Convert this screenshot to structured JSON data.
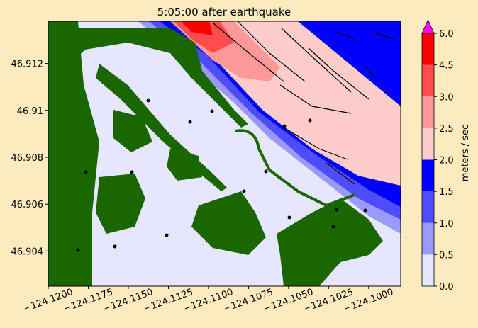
{
  "chart_data": {
    "type": "contourf",
    "title": "5:05:00 after earthquake",
    "xlim": [
      -124.12,
      -124.098
    ],
    "ylim": [
      46.9025,
      46.9138
    ],
    "xticks": [
      {
        "value": -124.12,
        "label": "−124.1200"
      },
      {
        "value": -124.1175,
        "label": "−124.1175"
      },
      {
        "value": -124.115,
        "label": "−124.1150"
      },
      {
        "value": -124.1125,
        "label": "−124.1125"
      },
      {
        "value": -124.11,
        "label": "−124.1100"
      },
      {
        "value": -124.1075,
        "label": "−124.1075"
      },
      {
        "value": -124.105,
        "label": "−124.1050"
      },
      {
        "value": -124.1025,
        "label": "−124.1025"
      },
      {
        "value": -124.1,
        "label": "−124.1000"
      }
    ],
    "yticks": [
      46.904,
      46.906,
      46.908,
      46.91,
      46.912
    ],
    "colorbar": {
      "label": "meters / sec",
      "ticks": [
        {
          "value": 0,
          "label": "0.0"
        },
        {
          "value": 0.5,
          "label": "0.5"
        },
        {
          "value": 1,
          "label": "1.0"
        },
        {
          "value": 1.5,
          "label": "1.5"
        },
        {
          "value": 2,
          "label": "2.0"
        },
        {
          "value": 2.5,
          "label": "2.5"
        },
        {
          "value": 3,
          "label": "3.0"
        },
        {
          "value": 4.5,
          "label": "4.5"
        },
        {
          "value": 6,
          "label": "6.0"
        }
      ],
      "colors": [
        "#e6e6ff",
        "#9999ff",
        "#4d4dff",
        "#0000ff",
        "#ffcccc",
        "#ff9999",
        "#ff4d4d",
        "#ff0000"
      ],
      "extend_color": "#ff00ff"
    }
  }
}
